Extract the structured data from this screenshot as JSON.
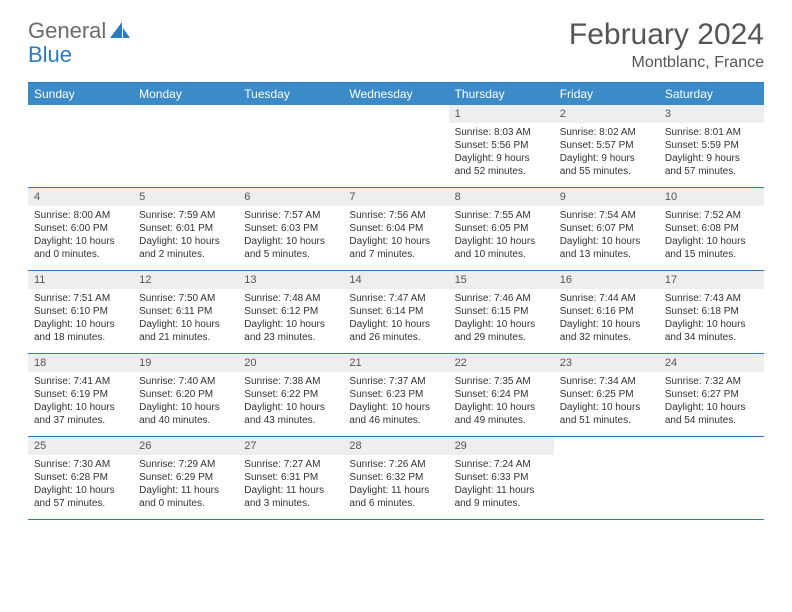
{
  "brand": {
    "part1": "General",
    "part2": "Blue"
  },
  "title": "February 2024",
  "location": "Montblanc, France",
  "colors": {
    "header_bg": "#3b8bc9",
    "border": "#2d7bbf",
    "daynum_bg": "#eceeef",
    "text": "#333333",
    "muted": "#555555"
  },
  "day_labels": [
    "Sunday",
    "Monday",
    "Tuesday",
    "Wednesday",
    "Thursday",
    "Friday",
    "Saturday"
  ],
  "weeks": [
    [
      null,
      null,
      null,
      null,
      {
        "n": "1",
        "sr": "Sunrise: 8:03 AM",
        "ss": "Sunset: 5:56 PM",
        "dl": "Daylight: 9 hours and 52 minutes."
      },
      {
        "n": "2",
        "sr": "Sunrise: 8:02 AM",
        "ss": "Sunset: 5:57 PM",
        "dl": "Daylight: 9 hours and 55 minutes."
      },
      {
        "n": "3",
        "sr": "Sunrise: 8:01 AM",
        "ss": "Sunset: 5:59 PM",
        "dl": "Daylight: 9 hours and 57 minutes."
      }
    ],
    [
      {
        "n": "4",
        "sr": "Sunrise: 8:00 AM",
        "ss": "Sunset: 6:00 PM",
        "dl": "Daylight: 10 hours and 0 minutes."
      },
      {
        "n": "5",
        "sr": "Sunrise: 7:59 AM",
        "ss": "Sunset: 6:01 PM",
        "dl": "Daylight: 10 hours and 2 minutes."
      },
      {
        "n": "6",
        "sr": "Sunrise: 7:57 AM",
        "ss": "Sunset: 6:03 PM",
        "dl": "Daylight: 10 hours and 5 minutes."
      },
      {
        "n": "7",
        "sr": "Sunrise: 7:56 AM",
        "ss": "Sunset: 6:04 PM",
        "dl": "Daylight: 10 hours and 7 minutes."
      },
      {
        "n": "8",
        "sr": "Sunrise: 7:55 AM",
        "ss": "Sunset: 6:05 PM",
        "dl": "Daylight: 10 hours and 10 minutes."
      },
      {
        "n": "9",
        "sr": "Sunrise: 7:54 AM",
        "ss": "Sunset: 6:07 PM",
        "dl": "Daylight: 10 hours and 13 minutes."
      },
      {
        "n": "10",
        "sr": "Sunrise: 7:52 AM",
        "ss": "Sunset: 6:08 PM",
        "dl": "Daylight: 10 hours and 15 minutes."
      }
    ],
    [
      {
        "n": "11",
        "sr": "Sunrise: 7:51 AM",
        "ss": "Sunset: 6:10 PM",
        "dl": "Daylight: 10 hours and 18 minutes."
      },
      {
        "n": "12",
        "sr": "Sunrise: 7:50 AM",
        "ss": "Sunset: 6:11 PM",
        "dl": "Daylight: 10 hours and 21 minutes."
      },
      {
        "n": "13",
        "sr": "Sunrise: 7:48 AM",
        "ss": "Sunset: 6:12 PM",
        "dl": "Daylight: 10 hours and 23 minutes."
      },
      {
        "n": "14",
        "sr": "Sunrise: 7:47 AM",
        "ss": "Sunset: 6:14 PM",
        "dl": "Daylight: 10 hours and 26 minutes."
      },
      {
        "n": "15",
        "sr": "Sunrise: 7:46 AM",
        "ss": "Sunset: 6:15 PM",
        "dl": "Daylight: 10 hours and 29 minutes."
      },
      {
        "n": "16",
        "sr": "Sunrise: 7:44 AM",
        "ss": "Sunset: 6:16 PM",
        "dl": "Daylight: 10 hours and 32 minutes."
      },
      {
        "n": "17",
        "sr": "Sunrise: 7:43 AM",
        "ss": "Sunset: 6:18 PM",
        "dl": "Daylight: 10 hours and 34 minutes."
      }
    ],
    [
      {
        "n": "18",
        "sr": "Sunrise: 7:41 AM",
        "ss": "Sunset: 6:19 PM",
        "dl": "Daylight: 10 hours and 37 minutes."
      },
      {
        "n": "19",
        "sr": "Sunrise: 7:40 AM",
        "ss": "Sunset: 6:20 PM",
        "dl": "Daylight: 10 hours and 40 minutes."
      },
      {
        "n": "20",
        "sr": "Sunrise: 7:38 AM",
        "ss": "Sunset: 6:22 PM",
        "dl": "Daylight: 10 hours and 43 minutes."
      },
      {
        "n": "21",
        "sr": "Sunrise: 7:37 AM",
        "ss": "Sunset: 6:23 PM",
        "dl": "Daylight: 10 hours and 46 minutes."
      },
      {
        "n": "22",
        "sr": "Sunrise: 7:35 AM",
        "ss": "Sunset: 6:24 PM",
        "dl": "Daylight: 10 hours and 49 minutes."
      },
      {
        "n": "23",
        "sr": "Sunrise: 7:34 AM",
        "ss": "Sunset: 6:25 PM",
        "dl": "Daylight: 10 hours and 51 minutes."
      },
      {
        "n": "24",
        "sr": "Sunrise: 7:32 AM",
        "ss": "Sunset: 6:27 PM",
        "dl": "Daylight: 10 hours and 54 minutes."
      }
    ],
    [
      {
        "n": "25",
        "sr": "Sunrise: 7:30 AM",
        "ss": "Sunset: 6:28 PM",
        "dl": "Daylight: 10 hours and 57 minutes."
      },
      {
        "n": "26",
        "sr": "Sunrise: 7:29 AM",
        "ss": "Sunset: 6:29 PM",
        "dl": "Daylight: 11 hours and 0 minutes."
      },
      {
        "n": "27",
        "sr": "Sunrise: 7:27 AM",
        "ss": "Sunset: 6:31 PM",
        "dl": "Daylight: 11 hours and 3 minutes."
      },
      {
        "n": "28",
        "sr": "Sunrise: 7:26 AM",
        "ss": "Sunset: 6:32 PM",
        "dl": "Daylight: 11 hours and 6 minutes."
      },
      {
        "n": "29",
        "sr": "Sunrise: 7:24 AM",
        "ss": "Sunset: 6:33 PM",
        "dl": "Daylight: 11 hours and 9 minutes."
      },
      null,
      null
    ]
  ]
}
